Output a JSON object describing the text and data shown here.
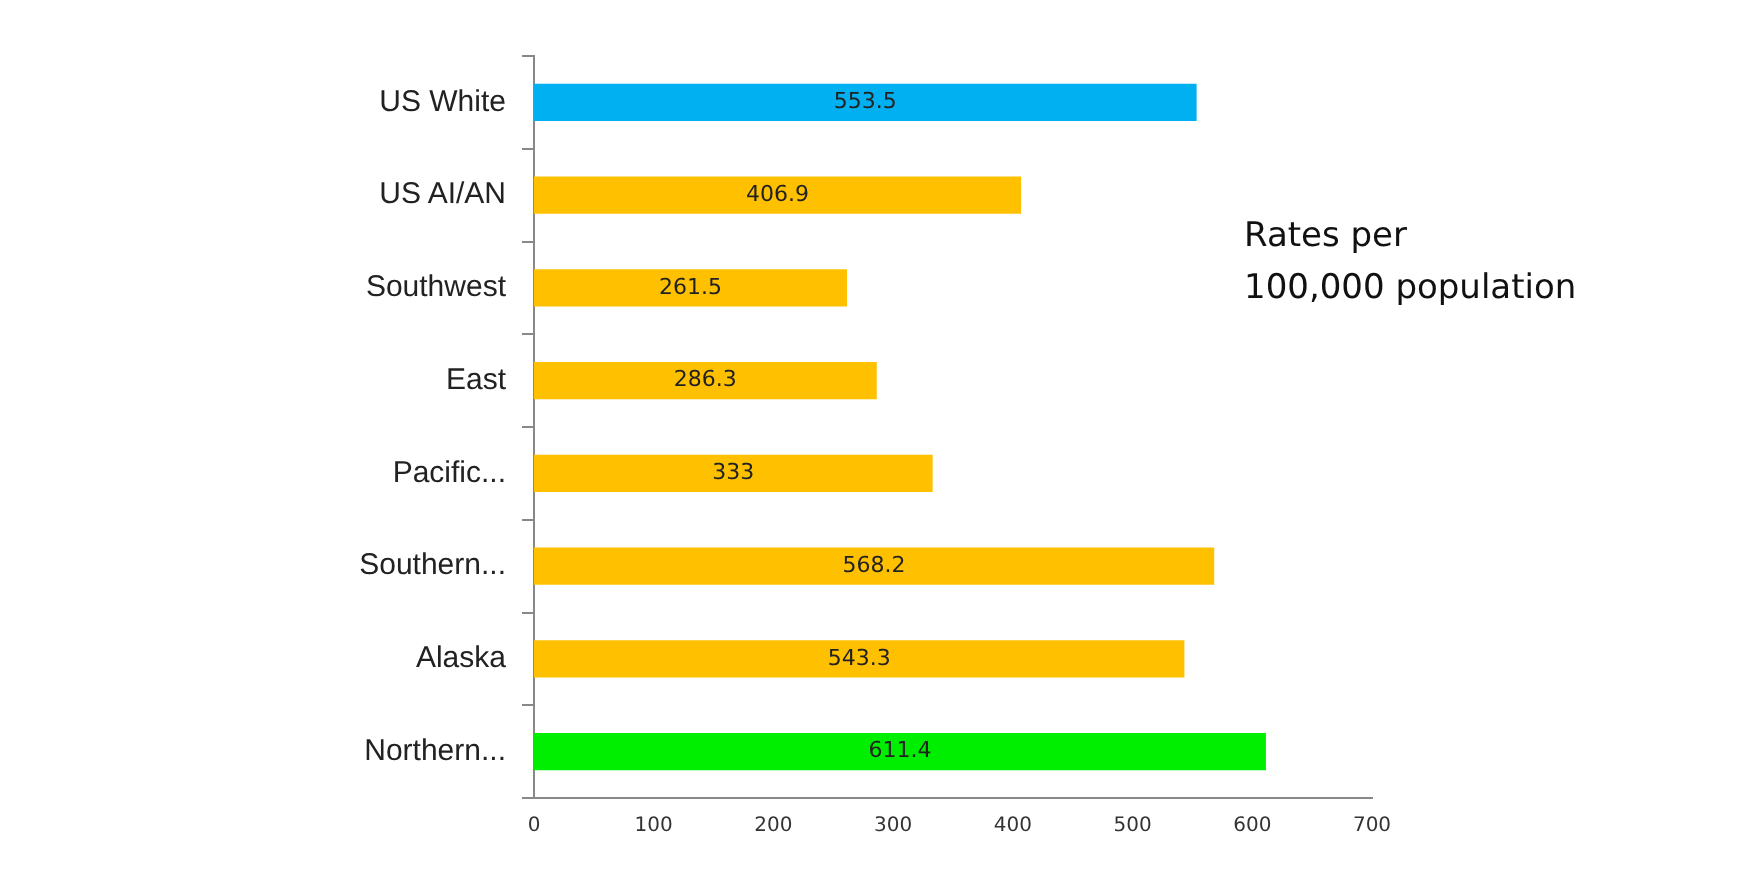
{
  "chart_data": {
    "type": "bar",
    "orientation": "horizontal",
    "categories": [
      "US White",
      "US AI/AN",
      "Southwest",
      "East",
      "Pacific...",
      "Southern...",
      "Alaska",
      "Northern..."
    ],
    "values": [
      553.5,
      406.9,
      261.5,
      286.3,
      333,
      568.2,
      543.3,
      611.4
    ],
    "colors": [
      "#00b0f0",
      "#ffc000",
      "#ffc000",
      "#ffc000",
      "#ffc000",
      "#ffc000",
      "#ffc000",
      "#00ee00"
    ],
    "xlim": [
      0,
      700
    ],
    "xticks": [
      0,
      100,
      200,
      300,
      400,
      500,
      600,
      700
    ],
    "data_labels": true,
    "grid": false,
    "legend": false,
    "annotations": [
      "Rates per\n100,000 population"
    ]
  }
}
